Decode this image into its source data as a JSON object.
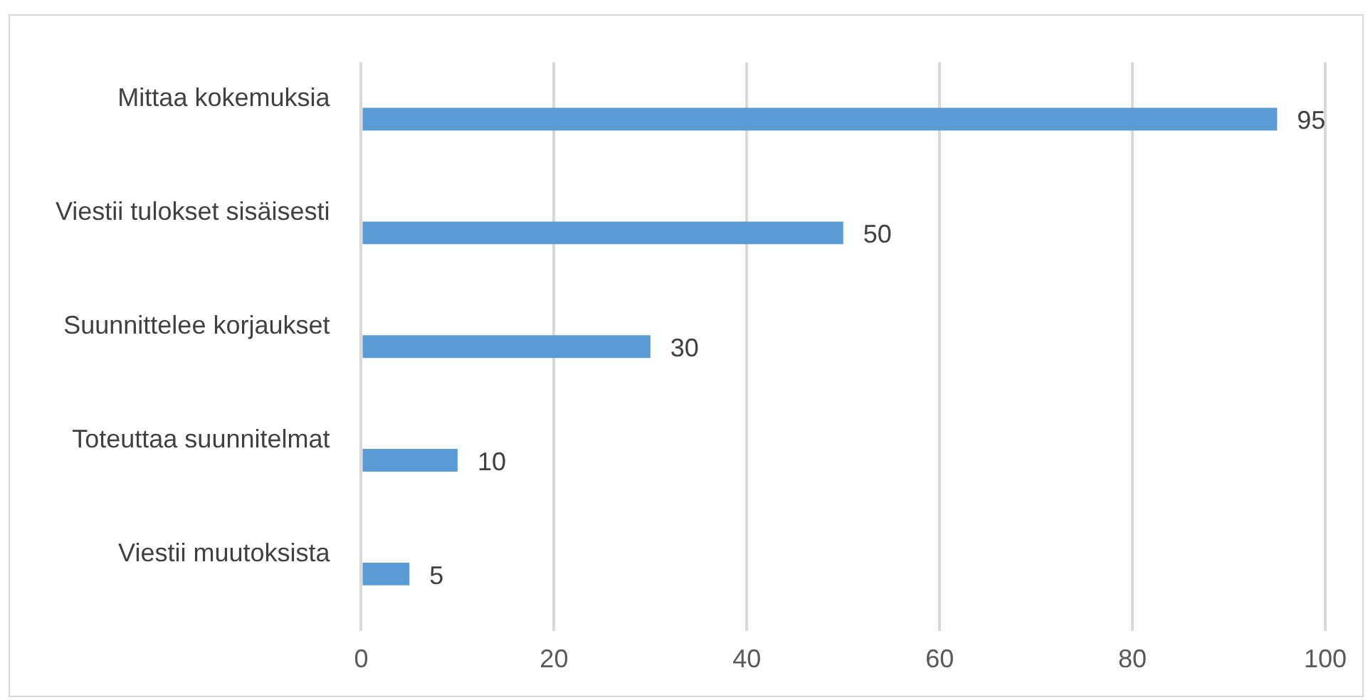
{
  "chart_data": {
    "type": "bar",
    "orientation": "horizontal",
    "categories": [
      "Mittaa kokemuksia",
      "Viestii tulokset sisäisesti",
      "Suunnittelee korjaukset",
      "Toteuttaa suunnitelmat",
      "Viestii muutoksista"
    ],
    "values": [
      95,
      50,
      30,
      10,
      5
    ],
    "color": "#5b9bd5",
    "xlim": [
      0,
      100
    ],
    "xticks": [
      0,
      20,
      40,
      60,
      80,
      100
    ],
    "grid": "x",
    "data_labels": true,
    "legend": false
  }
}
